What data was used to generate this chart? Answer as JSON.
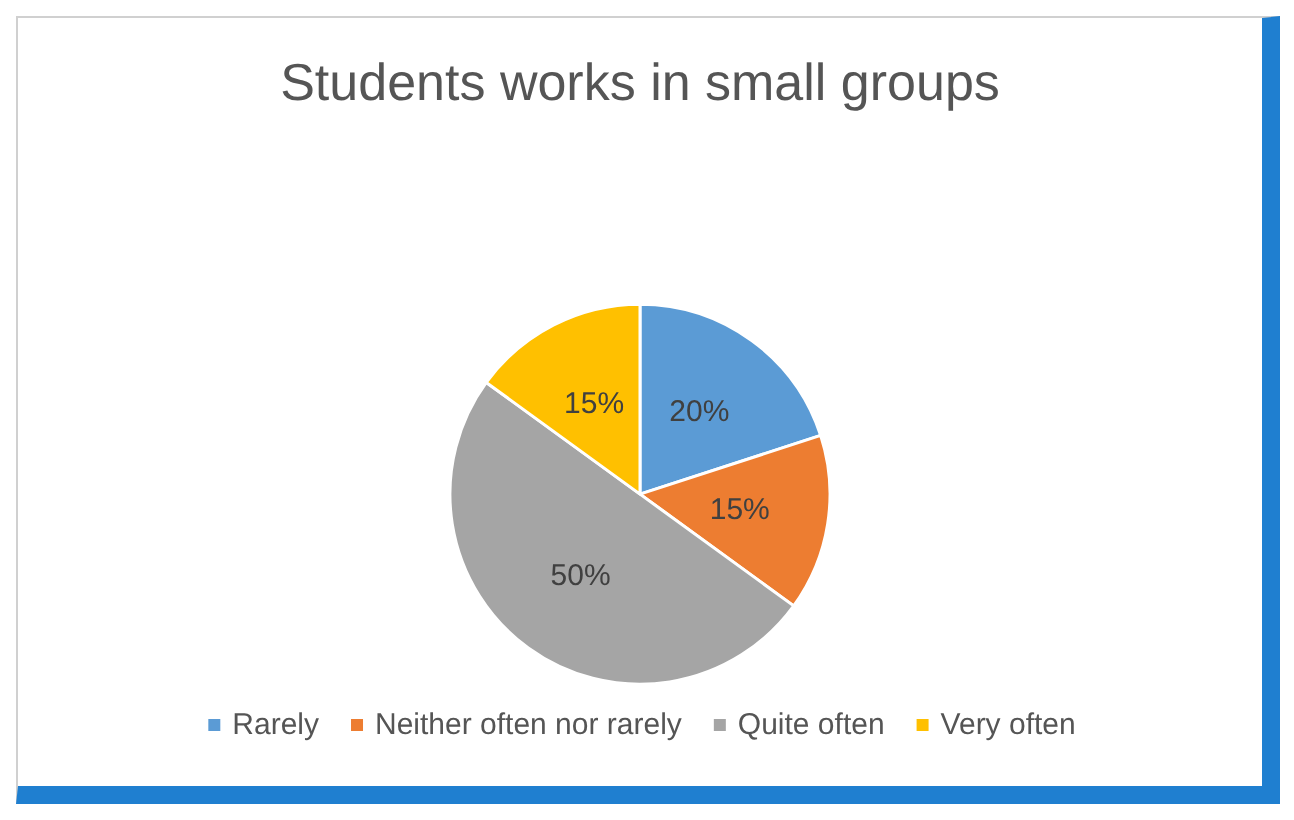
{
  "chart_data": {
    "type": "pie",
    "title": "Students works in small groups",
    "categories": [
      "Rarely",
      "Neither often nor rarely",
      "Quite often",
      "Very often"
    ],
    "values": [
      20,
      15,
      50,
      15
    ],
    "colors": [
      "#5b9bd5",
      "#ed7d31",
      "#a5a5a5",
      "#ffc000"
    ],
    "value_labels": [
      "20%",
      "15%",
      "50%",
      "15%"
    ],
    "legend": "bottom"
  }
}
